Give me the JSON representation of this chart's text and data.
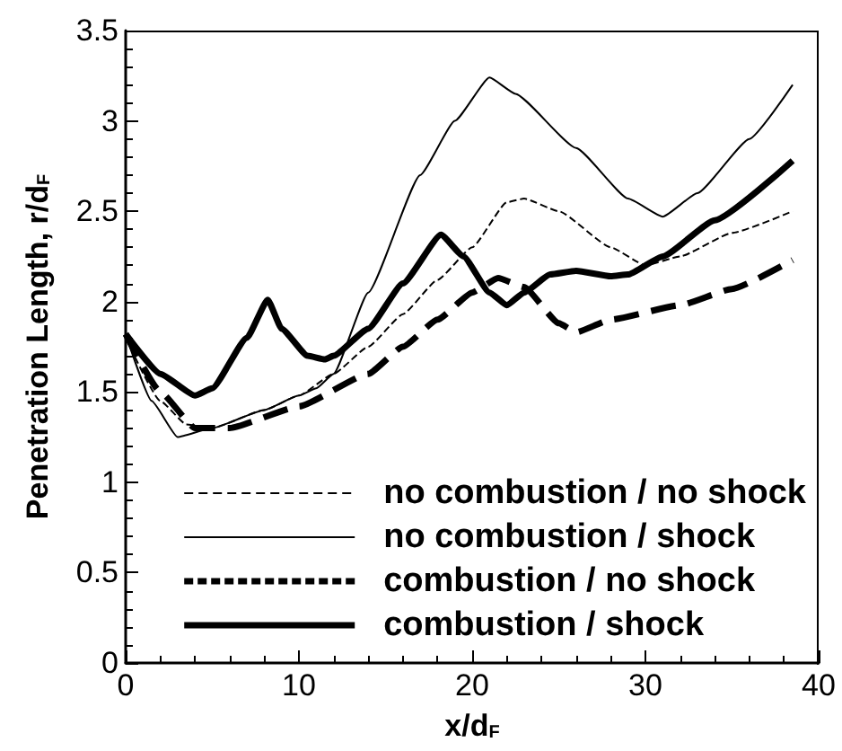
{
  "chart_data": {
    "type": "line",
    "xlabel": "x/d$_{F}$",
    "ylabel": "Penetration Length, r/d$_{F}$",
    "xlim": [
      0,
      40
    ],
    "xticks": [
      0,
      10,
      20,
      30,
      40
    ],
    "ylim": [
      0,
      3.5
    ],
    "yticks": [
      0,
      0.5,
      1,
      1.5,
      2,
      2.5,
      3,
      3.5
    ],
    "grid": false,
    "legend": "bottom right",
    "marker": "none",
    "series": [
      {
        "name": "no combustion / no shock",
        "color": "#000000",
        "line_style": "dashed",
        "x": [
          0,
          2,
          3.5,
          5,
          8,
          10,
          12,
          14,
          16,
          18,
          20,
          22,
          23,
          25,
          28,
          30,
          32,
          35,
          38.5
        ],
        "values": [
          1.8,
          1.45,
          1.32,
          1.3,
          1.4,
          1.48,
          1.6,
          1.75,
          1.93,
          2.12,
          2.3,
          2.55,
          2.57,
          2.5,
          2.3,
          2.2,
          2.25,
          2.38,
          2.5
        ]
      },
      {
        "name": "no combustion / shock",
        "color": "#000000",
        "line_style": "solid",
        "x": [
          0,
          1.5,
          3,
          5,
          8,
          10,
          11,
          12,
          14,
          17,
          19,
          21,
          22.5,
          26,
          29,
          31,
          33,
          36,
          38.5
        ],
        "values": [
          1.82,
          1.45,
          1.25,
          1.3,
          1.4,
          1.48,
          1.52,
          1.6,
          2.05,
          2.7,
          3.0,
          3.24,
          3.15,
          2.85,
          2.57,
          2.47,
          2.6,
          2.9,
          3.2
        ]
      },
      {
        "name": "combustion / no shock",
        "color": "#000000",
        "line_style": "dashed",
        "x": [
          0,
          2,
          4,
          6,
          10,
          14,
          16,
          18,
          20,
          21.5,
          23,
          25,
          26,
          28,
          32,
          35,
          38.5
        ],
        "values": [
          1.82,
          1.5,
          1.3,
          1.3,
          1.42,
          1.6,
          1.75,
          1.9,
          2.05,
          2.13,
          2.08,
          1.88,
          1.83,
          1.9,
          1.98,
          2.07,
          2.23
        ]
      },
      {
        "name": "combustion / shock",
        "color": "#000000",
        "line_style": "solid",
        "x": [
          0,
          2,
          4,
          5,
          7,
          8.2,
          9,
          10.5,
          11.5,
          12,
          14,
          16,
          18.2,
          19.5,
          21,
          22,
          23,
          24.5,
          26,
          28,
          29,
          31,
          34,
          38.5
        ],
        "values": [
          1.82,
          1.6,
          1.48,
          1.52,
          1.8,
          2.01,
          1.85,
          1.7,
          1.68,
          1.7,
          1.85,
          2.1,
          2.37,
          2.25,
          2.05,
          1.98,
          2.05,
          2.15,
          2.17,
          2.14,
          2.15,
          2.25,
          2.45,
          2.78
        ]
      }
    ]
  }
}
